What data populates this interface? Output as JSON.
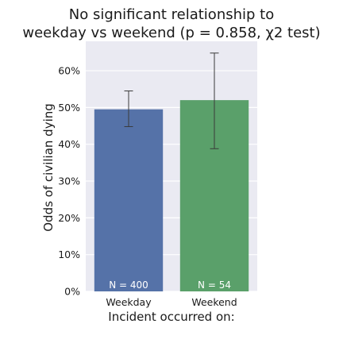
{
  "chart_data": {
    "type": "bar",
    "title_lines": [
      "No significant relationship to",
      "weekday vs weekend (p = 0.858, χ2 test)"
    ],
    "xlabel": "Incident occurred on:",
    "ylabel": "Odds of civilian dying",
    "categories": [
      "Weekday",
      "Weekend"
    ],
    "values": [
      0.495,
      0.52
    ],
    "error_low": [
      0.448,
      0.388
    ],
    "error_high": [
      0.545,
      0.648
    ],
    "bar_labels": [
      "N = 400",
      "N = 54"
    ],
    "colors": [
      "#5572a8",
      "#5aa06a"
    ],
    "plot_background": "#eaeaf2",
    "ylim": [
      0,
      0.68
    ],
    "yticks": [
      0,
      0.1,
      0.2,
      0.3,
      0.4,
      0.5,
      0.6
    ],
    "ytick_labels": [
      "0%",
      "10%",
      "20%",
      "30%",
      "40%",
      "50%",
      "60%"
    ],
    "grid": true
  }
}
